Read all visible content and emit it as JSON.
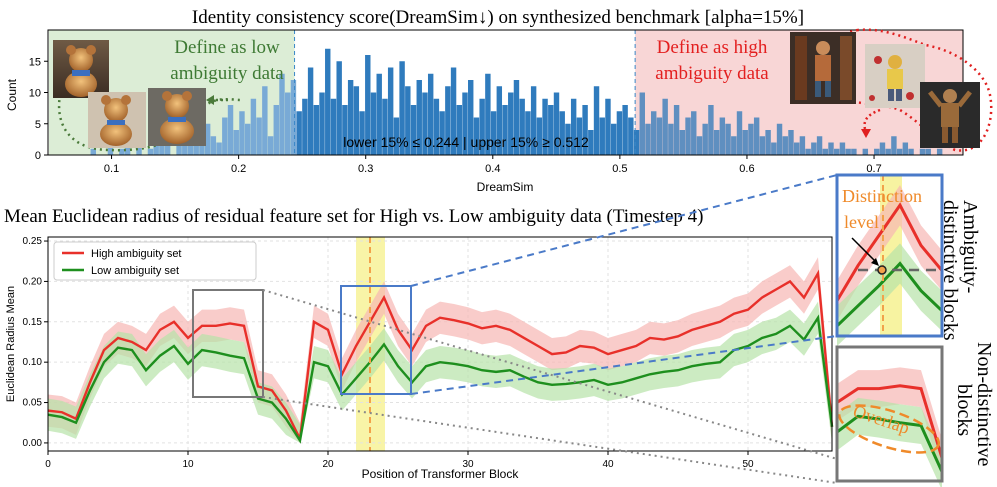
{
  "chart_data": [
    {
      "type": "bar",
      "title": "Identity consistency score(DreamSim↓) on synthesized benchmark [alpha=15%]",
      "xlabel": "DreamSim",
      "ylabel": "Count",
      "xlim": [
        0.05,
        0.77
      ],
      "ylim": [
        0,
        20
      ],
      "xticks": [
        "0.1",
        "0.2",
        "0.3",
        "0.4",
        "0.5",
        "0.6",
        "0.7"
      ],
      "yticks": [
        "0",
        "5",
        "10",
        "15"
      ],
      "threshold_low": 0.244,
      "threshold_high": 0.512,
      "annotation": "lower 15% ≤ 0.244 | upper 15% ≥ 0.512",
      "low_label": "Define as low ambiguity data",
      "high_label": "Define as high ambiguity data",
      "bin_start": 0.07,
      "bin_width": 0.0045,
      "counts": [
        0,
        0,
        0,
        1,
        0,
        0,
        2,
        0,
        1,
        3,
        0,
        2,
        0,
        1,
        4,
        2,
        3,
        0,
        5,
        2,
        3,
        7,
        4,
        5,
        3,
        2,
        6,
        8,
        4,
        7,
        5,
        9,
        6,
        11,
        3,
        8,
        13,
        10,
        12,
        7,
        9,
        14,
        8,
        10,
        17,
        9,
        15,
        8,
        12,
        11,
        7,
        16,
        10,
        13,
        9,
        14,
        6,
        15,
        11,
        8,
        12,
        10,
        13,
        9,
        7,
        11,
        14,
        8,
        10,
        12,
        6,
        9,
        13,
        7,
        11,
        8,
        10,
        12,
        9,
        7,
        11,
        6,
        9,
        8,
        10,
        7,
        5,
        9,
        6,
        8,
        4,
        11,
        6,
        9,
        5,
        7,
        8,
        6,
        4,
        10,
        5,
        7,
        6,
        9,
        5,
        8,
        4,
        6,
        7,
        3,
        5,
        8,
        4,
        6,
        5,
        3,
        7,
        4,
        5,
        6,
        3,
        4,
        2,
        5,
        3,
        4,
        2,
        3,
        1,
        2,
        3,
        1,
        2,
        1,
        2,
        1,
        1,
        0,
        1,
        0,
        1,
        2,
        1,
        3,
        1,
        2,
        1,
        0,
        1,
        1,
        0,
        1,
        0,
        0
      ]
    },
    {
      "type": "line",
      "title": "Mean Euclidean radius of residual feature set for High vs. Low ambiguity data (Timestep 4)",
      "xlabel": "Position of Transformer Block",
      "ylabel": "Euclidean Radius Mean",
      "xlim": [
        0,
        56
      ],
      "ylim": [
        -0.01,
        0.255
      ],
      "xticks": [
        "0",
        "10",
        "20",
        "30",
        "40",
        "50"
      ],
      "yticks": [
        "0.00",
        "0.05",
        "0.10",
        "0.15",
        "0.20",
        "0.25"
      ],
      "highlight_block": 23,
      "series": [
        {
          "name": "High ambiguity set",
          "color": "#e8302a",
          "band": 0.02,
          "values": [
            0.04,
            0.038,
            0.03,
            0.075,
            0.115,
            0.13,
            0.125,
            0.115,
            0.14,
            0.15,
            0.13,
            0.145,
            0.145,
            0.148,
            0.145,
            0.07,
            0.065,
            0.04,
            0.005,
            0.15,
            0.14,
            0.085,
            0.12,
            0.15,
            0.18,
            0.14,
            0.115,
            0.145,
            0.155,
            0.152,
            0.148,
            0.142,
            0.145,
            0.14,
            0.13,
            0.12,
            0.11,
            0.112,
            0.12,
            0.118,
            0.11,
            0.115,
            0.12,
            0.13,
            0.128,
            0.132,
            0.14,
            0.145,
            0.15,
            0.16,
            0.165,
            0.18,
            0.19,
            0.2,
            0.18,
            0.21,
            0.02
          ]
        },
        {
          "name": "Low ambiguity set",
          "color": "#1e8f1e",
          "band": 0.02,
          "values": [
            0.035,
            0.032,
            0.025,
            0.065,
            0.1,
            0.118,
            0.115,
            0.09,
            0.108,
            0.12,
            0.098,
            0.115,
            0.112,
            0.108,
            0.105,
            0.055,
            0.05,
            0.03,
            0.003,
            0.1,
            0.095,
            0.06,
            0.08,
            0.1,
            0.122,
            0.095,
            0.075,
            0.095,
            0.1,
            0.098,
            0.095,
            0.09,
            0.088,
            0.09,
            0.082,
            0.075,
            0.072,
            0.073,
            0.075,
            0.078,
            0.072,
            0.075,
            0.08,
            0.085,
            0.088,
            0.09,
            0.095,
            0.098,
            0.1,
            0.115,
            0.12,
            0.13,
            0.135,
            0.145,
            0.128,
            0.155,
            0.02
          ]
        }
      ]
    }
  ],
  "side": {
    "top_label": "Ambiguity-distinctive blocks",
    "bottom_label": "Non-distinctive blocks",
    "distinction_label": "Distinction level",
    "overlap_label": "Overlap"
  }
}
